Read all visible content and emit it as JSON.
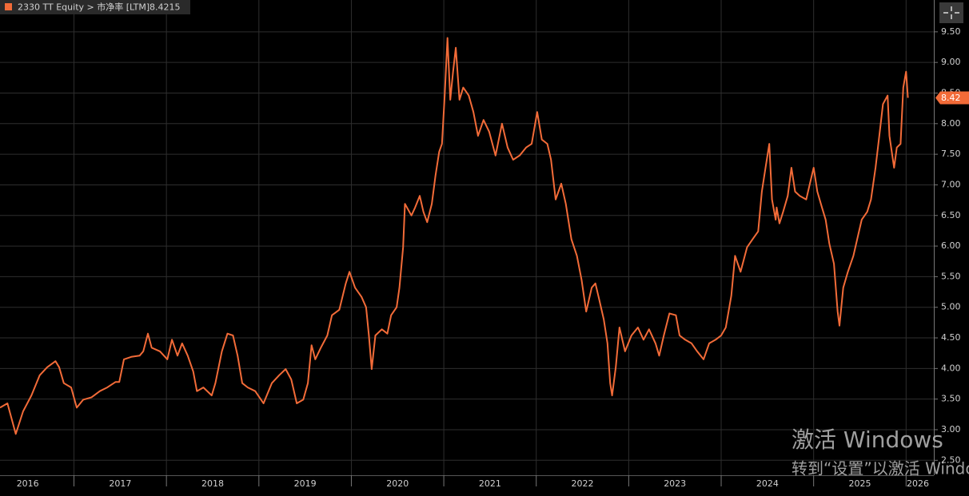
{
  "chart_data": {
    "type": "line",
    "series": [
      {
        "name": "2330 TT Equity > 市净率 [LTM]",
        "color": "#f26b38",
        "values": [
          3.36,
          3.43,
          2.93,
          3.3,
          3.56,
          3.89,
          4.02,
          4.12,
          4.02,
          3.76,
          3.69,
          3.36,
          3.49,
          3.53,
          3.63,
          3.69,
          3.78,
          3.78,
          4.15,
          4.19,
          4.21,
          4.28,
          4.57,
          4.34,
          4.28,
          4.15,
          4.47,
          4.21,
          4.41,
          4.21,
          3.95,
          3.63,
          3.69,
          3.56,
          3.76,
          4.28,
          4.57,
          4.54,
          4.21,
          3.76,
          3.69,
          3.63,
          3.43,
          3.76,
          3.89,
          3.99,
          3.82,
          3.43,
          3.49,
          3.76,
          4.38,
          4.15,
          4.34,
          4.54,
          4.87,
          4.96,
          5.39,
          5.58,
          5.32,
          5.17,
          5.0,
          4.54,
          3.99,
          4.54,
          4.64,
          4.57,
          4.87,
          5.0,
          5.32,
          5.98,
          6.69,
          6.5,
          6.63,
          6.82,
          6.56,
          6.39,
          6.69,
          7.15,
          7.54,
          7.67,
          8.46,
          9.4,
          8.39,
          8.85,
          9.24,
          8.39,
          8.59,
          8.46,
          8.19,
          7.8,
          8.06,
          7.87,
          7.48,
          8.0,
          7.61,
          7.41,
          7.48,
          7.61,
          7.67,
          8.19,
          7.74,
          7.67,
          7.41,
          6.76,
          7.02,
          6.69,
          6.11,
          5.84,
          5.45,
          4.93,
          5.32,
          5.39,
          5.13,
          4.8,
          4.41,
          3.76,
          3.56,
          4.02,
          4.67,
          4.28,
          4.54,
          4.67,
          4.47,
          4.64,
          4.41,
          4.21,
          4.54,
          4.9,
          4.87,
          4.54,
          4.47,
          4.41,
          4.28,
          4.15,
          4.41,
          4.47,
          4.54,
          4.67,
          5.19,
          5.84,
          5.58,
          5.98,
          6.11,
          6.24,
          6.89,
          7.28,
          7.67,
          6.76,
          6.43,
          6.63,
          6.37,
          6.56,
          6.82,
          7.28,
          6.89,
          6.82,
          6.76,
          7.02,
          7.28,
          6.89,
          6.63,
          6.43,
          6.04,
          5.71,
          4.93,
          4.7,
          5.32,
          5.58,
          5.84,
          6.17,
          6.43,
          6.56,
          6.76,
          7.28,
          7.8,
          8.32,
          8.46,
          7.8,
          7.28,
          7.61,
          7.67,
          8.59,
          8.85,
          8.4215
        ]
      }
    ],
    "x": [
      2016.2,
      2016.28,
      2016.37,
      2016.45,
      2016.54,
      2016.63,
      2016.71,
      2016.8,
      2016.84,
      2016.89,
      2016.97,
      2017.03,
      2017.1,
      2017.19,
      2017.28,
      2017.36,
      2017.45,
      2017.49,
      2017.54,
      2017.62,
      2017.71,
      2017.75,
      2017.8,
      2017.84,
      2017.93,
      2018.01,
      2018.06,
      2018.12,
      2018.17,
      2018.23,
      2018.29,
      2018.33,
      2018.4,
      2018.49,
      2018.53,
      2018.6,
      2018.66,
      2018.72,
      2018.77,
      2018.82,
      2018.88,
      2018.96,
      2019.05,
      2019.14,
      2019.22,
      2019.29,
      2019.35,
      2019.41,
      2019.48,
      2019.53,
      2019.57,
      2019.61,
      2019.67,
      2019.74,
      2019.79,
      2019.87,
      2019.94,
      2019.98,
      2020.04,
      2020.11,
      2020.16,
      2020.19,
      2020.22,
      2020.26,
      2020.33,
      2020.39,
      2020.43,
      2020.49,
      2020.52,
      2020.56,
      2020.58,
      2020.65,
      2020.69,
      2020.74,
      2020.78,
      2020.82,
      2020.87,
      2020.91,
      2020.95,
      2020.98,
      2021.01,
      2021.04,
      2021.07,
      2021.1,
      2021.13,
      2021.17,
      2021.21,
      2021.27,
      2021.32,
      2021.37,
      2021.43,
      2021.49,
      2021.56,
      2021.63,
      2021.69,
      2021.75,
      2021.82,
      2021.89,
      2021.95,
      2022.01,
      2022.06,
      2022.12,
      2022.16,
      2022.21,
      2022.27,
      2022.32,
      2022.38,
      2022.44,
      2022.49,
      2022.54,
      2022.6,
      2022.64,
      2022.68,
      2022.73,
      2022.77,
      2022.8,
      2022.82,
      2022.86,
      2022.9,
      2022.96,
      2023.03,
      2023.1,
      2023.16,
      2023.22,
      2023.29,
      2023.33,
      2023.38,
      2023.44,
      2023.51,
      2023.55,
      2023.61,
      2023.68,
      2023.74,
      2023.81,
      2023.87,
      2023.94,
      2024.0,
      2024.05,
      2024.11,
      2024.15,
      2024.21,
      2024.28,
      2024.34,
      2024.4,
      2024.44,
      2024.48,
      2024.52,
      2024.55,
      2024.59,
      2024.6,
      2024.63,
      2024.67,
      2024.72,
      2024.76,
      2024.8,
      2024.85,
      2024.92,
      2024.96,
      2025.0,
      2025.04,
      2025.09,
      2025.13,
      2025.17,
      2025.22,
      2025.26,
      2025.28,
      2025.32,
      2025.37,
      2025.43,
      2025.48,
      2025.52,
      2025.58,
      2025.62,
      2025.67,
      2025.71,
      2025.75,
      2025.8,
      2025.82,
      2025.87,
      2025.9,
      2025.94,
      2025.97,
      2026.0,
      2026.02
    ],
    "last_value_label": "8.42",
    "xlim": [
      2016.2,
      2026.3
    ],
    "xticks": [
      {
        "value": 2016,
        "label": "2016"
      },
      {
        "value": 2017,
        "label": "2017"
      },
      {
        "value": 2018,
        "label": "2018"
      },
      {
        "value": 2019,
        "label": "2019"
      },
      {
        "value": 2020,
        "label": "2020"
      },
      {
        "value": 2021,
        "label": "2021"
      },
      {
        "value": 2022,
        "label": "2022"
      },
      {
        "value": 2023,
        "label": "2023"
      },
      {
        "value": 2024,
        "label": "2024"
      },
      {
        "value": 2025,
        "label": "2025"
      },
      {
        "value": 2026,
        "label": "2026"
      }
    ],
    "ylim": [
      2.256,
      10.02
    ],
    "yticks": [
      {
        "value": 2.5,
        "label": "2.50"
      },
      {
        "value": 3,
        "label": "3.00"
      },
      {
        "value": 3.5,
        "label": "3.50"
      },
      {
        "value": 4,
        "label": "4.00"
      },
      {
        "value": 4.5,
        "label": "4.50"
      },
      {
        "value": 5,
        "label": "5.00"
      },
      {
        "value": 5.5,
        "label": "5.50"
      },
      {
        "value": 6,
        "label": "6.00"
      },
      {
        "value": 6.5,
        "label": "6.50"
      },
      {
        "value": 7,
        "label": "7.00"
      },
      {
        "value": 7.5,
        "label": "7.50"
      },
      {
        "value": 8,
        "label": "8.00"
      },
      {
        "value": 8.5,
        "label": "8.50"
      },
      {
        "value": 9,
        "label": "9.00"
      },
      {
        "value": 9.5,
        "label": "9.50"
      }
    ],
    "grid": true
  },
  "watermark": {
    "line1": "激活 Windows",
    "line2": "转到“设置”以激活 Windows"
  }
}
